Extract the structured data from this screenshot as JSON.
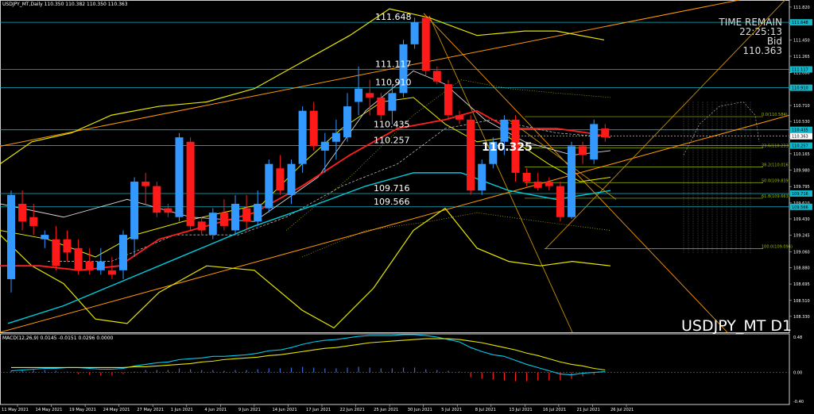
{
  "header": {
    "symbol_info": "USDJPY_MT,Daily  110.350 110.382 110.350 110.363",
    "macd_info": "MACD(12,26,9) 0.0145 -0.0151 0.0296 0.0000",
    "watermark": "USDJPY_MT D1",
    "time_remain_label": "TIME REMAIN",
    "time_remain_value": "22:25:13",
    "bid_label": "Bid",
    "bid_value": "110.363",
    "current_label": "110.325"
  },
  "colors": {
    "background": "#000000",
    "bull": "#3399ff",
    "bear": "#ff1a1a",
    "ma_fast": "#ff2020",
    "ma_slow": "#00ccdd",
    "bollinger": "#e6e600",
    "channel": "#ff9900",
    "macd_line": "#00ccee",
    "signal_line": "#e6e600"
  },
  "level_labels": [
    {
      "text": "111.648",
      "price": 111.648
    },
    {
      "text": "111.117",
      "price": 111.117
    },
    {
      "text": "110.910",
      "price": 110.91
    },
    {
      "text": "110.435",
      "price": 110.435
    },
    {
      "text": "110.257",
      "price": 110.257
    },
    {
      "text": "109.716",
      "price": 109.716
    },
    {
      "text": "109.566",
      "price": 109.566
    }
  ],
  "fib_labels": [
    {
      "text": "0.0(110.584)",
      "price": 110.584
    },
    {
      "text": "23.6(110.233)",
      "price": 110.233
    },
    {
      "text": "38.2(110.016)",
      "price": 110.016
    },
    {
      "text": "50.0(109.839)",
      "price": 109.839
    },
    {
      "text": "61.8(109.663)",
      "price": 109.663
    },
    {
      "text": "100.0(109.094)",
      "price": 109.094
    }
  ],
  "price_axis_ticks": [
    "111.820",
    "111.635",
    "111.450",
    "111.265",
    "111.080",
    "110.895",
    "110.710",
    "110.530",
    "110.345",
    "110.165",
    "109.980",
    "109.795",
    "109.610",
    "109.430",
    "109.245",
    "109.060",
    "108.880",
    "108.695",
    "108.510",
    "108.330"
  ],
  "price_axis_badges": [
    {
      "text": "111.648",
      "price": 111.648
    },
    {
      "text": "111.117",
      "price": 111.117
    },
    {
      "text": "110.910",
      "price": 110.91
    },
    {
      "text": "110.435",
      "price": 110.435
    },
    {
      "text": "110.363",
      "price": 110.363
    },
    {
      "text": "110.257",
      "price": 110.257
    },
    {
      "text": "109.716",
      "price": 109.716
    },
    {
      "text": "109.566",
      "price": 109.566
    }
  ],
  "macd_axis_ticks": [
    "0.48",
    "0.00",
    "-0.40"
  ],
  "date_axis_labels": [
    "11 May 2021",
    "14 May 2021",
    "19 May 2021",
    "24 May 2021",
    "27 May 2021",
    "1 Jun 2021",
    "4 Jun 2021",
    "9 Jun 2021",
    "14 Jun 2021",
    "17 Jun 2021",
    "22 Jun 2021",
    "25 Jun 2021",
    "30 Jun 2021",
    "5 Jul 2021",
    "8 Jul 2021",
    "13 Jul 2021",
    "16 Jul 2021",
    "21 Jul 2021",
    "26 Jul 2021"
  ],
  "chart_data": {
    "type": "candlestick",
    "symbol": "USDJPY_MT",
    "timeframe": "D1",
    "ylim": [
      108.15,
      111.9
    ],
    "macd_ylim": [
      -0.4,
      0.48
    ],
    "candles": [
      {
        "o": 108.75,
        "h": 109.75,
        "l": 108.6,
        "c": 109.7
      },
      {
        "o": 109.6,
        "h": 109.75,
        "l": 109.3,
        "c": 109.4
      },
      {
        "o": 109.45,
        "h": 109.6,
        "l": 109.25,
        "c": 109.35
      },
      {
        "o": 109.2,
        "h": 109.3,
        "l": 109.1,
        "c": 109.25
      },
      {
        "o": 109.2,
        "h": 109.35,
        "l": 108.85,
        "c": 108.9
      },
      {
        "o": 109.2,
        "h": 109.3,
        "l": 108.95,
        "c": 109.05
      },
      {
        "o": 109.1,
        "h": 109.2,
        "l": 108.8,
        "c": 108.85
      },
      {
        "o": 108.95,
        "h": 109.1,
        "l": 108.8,
        "c": 108.85
      },
      {
        "o": 108.85,
        "h": 109.1,
        "l": 108.8,
        "c": 108.95
      },
      {
        "o": 108.85,
        "h": 109.0,
        "l": 108.75,
        "c": 108.8
      },
      {
        "o": 108.85,
        "h": 109.3,
        "l": 108.75,
        "c": 109.25
      },
      {
        "o": 109.2,
        "h": 109.9,
        "l": 109.0,
        "c": 109.85
      },
      {
        "o": 109.85,
        "h": 109.95,
        "l": 109.6,
        "c": 109.8
      },
      {
        "o": 109.8,
        "h": 109.85,
        "l": 109.45,
        "c": 109.5
      },
      {
        "o": 109.55,
        "h": 109.6,
        "l": 109.45,
        "c": 109.5
      },
      {
        "o": 109.45,
        "h": 110.4,
        "l": 109.4,
        "c": 110.35
      },
      {
        "o": 110.3,
        "h": 110.35,
        "l": 109.3,
        "c": 109.35
      },
      {
        "o": 109.4,
        "h": 109.45,
        "l": 109.25,
        "c": 109.3
      },
      {
        "o": 109.25,
        "h": 109.55,
        "l": 109.2,
        "c": 109.5
      },
      {
        "o": 109.5,
        "h": 109.65,
        "l": 109.3,
        "c": 109.35
      },
      {
        "o": 109.3,
        "h": 109.7,
        "l": 109.25,
        "c": 109.6
      },
      {
        "o": 109.55,
        "h": 109.7,
        "l": 109.3,
        "c": 109.4
      },
      {
        "o": 109.4,
        "h": 109.75,
        "l": 109.35,
        "c": 109.6
      },
      {
        "o": 109.55,
        "h": 110.1,
        "l": 109.5,
        "c": 110.05
      },
      {
        "o": 110.0,
        "h": 110.15,
        "l": 109.7,
        "c": 109.75
      },
      {
        "o": 109.7,
        "h": 110.1,
        "l": 109.6,
        "c": 110.05
      },
      {
        "o": 110.05,
        "h": 110.7,
        "l": 109.95,
        "c": 110.65
      },
      {
        "o": 110.65,
        "h": 110.75,
        "l": 110.2,
        "c": 110.25
      },
      {
        "o": 110.2,
        "h": 110.4,
        "l": 109.95,
        "c": 110.3
      },
      {
        "o": 110.3,
        "h": 110.55,
        "l": 110.1,
        "c": 110.4
      },
      {
        "o": 110.35,
        "h": 110.85,
        "l": 110.3,
        "c": 110.7
      },
      {
        "o": 110.75,
        "h": 111.15,
        "l": 110.6,
        "c": 110.9
      },
      {
        "o": 110.85,
        "h": 111.0,
        "l": 110.6,
        "c": 110.8
      },
      {
        "o": 110.8,
        "h": 110.85,
        "l": 110.55,
        "c": 110.6
      },
      {
        "o": 110.65,
        "h": 110.95,
        "l": 110.5,
        "c": 110.85
      },
      {
        "o": 110.85,
        "h": 111.45,
        "l": 110.8,
        "c": 111.4
      },
      {
        "o": 111.4,
        "h": 111.7,
        "l": 111.35,
        "c": 111.65
      },
      {
        "o": 111.7,
        "h": 111.72,
        "l": 111.05,
        "c": 111.1
      },
      {
        "o": 111.1,
        "h": 111.15,
        "l": 110.95,
        "c": 110.98
      },
      {
        "o": 110.95,
        "h": 111.0,
        "l": 110.55,
        "c": 110.6
      },
      {
        "o": 110.6,
        "h": 110.65,
        "l": 110.5,
        "c": 110.55
      },
      {
        "o": 110.55,
        "h": 110.6,
        "l": 109.7,
        "c": 109.75
      },
      {
        "o": 109.75,
        "h": 110.1,
        "l": 109.7,
        "c": 110.05
      },
      {
        "o": 110.05,
        "h": 110.35,
        "l": 110.0,
        "c": 110.3
      },
      {
        "o": 110.3,
        "h": 110.6,
        "l": 110.15,
        "c": 110.55
      },
      {
        "o": 110.55,
        "h": 110.6,
        "l": 109.85,
        "c": 109.95
      },
      {
        "o": 109.95,
        "h": 110.0,
        "l": 109.8,
        "c": 109.85
      },
      {
        "o": 109.85,
        "h": 109.95,
        "l": 109.75,
        "c": 109.78
      },
      {
        "o": 109.85,
        "h": 109.9,
        "l": 109.75,
        "c": 109.8
      },
      {
        "o": 109.8,
        "h": 109.85,
        "l": 109.4,
        "c": 109.45
      },
      {
        "o": 109.45,
        "h": 110.3,
        "l": 109.43,
        "c": 110.25
      },
      {
        "o": 110.25,
        "h": 110.3,
        "l": 110.05,
        "c": 110.15
      },
      {
        "o": 110.1,
        "h": 110.55,
        "l": 110.05,
        "c": 110.5
      },
      {
        "o": 110.45,
        "h": 110.5,
        "l": 110.3,
        "c": 110.35
      }
    ],
    "macd_histogram": [
      0.02,
      0.03,
      0.03,
      0.03,
      0.02,
      0.01,
      -0.02,
      -0.03,
      -0.04,
      -0.04,
      -0.02,
      0.01,
      0.03,
      0.03,
      0.03,
      0.05,
      0.04,
      0.03,
      0.03,
      0.02,
      0.03,
      0.03,
      0.04,
      0.05,
      0.05,
      0.06,
      0.07,
      0.06,
      0.05,
      0.05,
      0.06,
      0.07,
      0.06,
      0.05,
      0.05,
      0.06,
      0.06,
      0.04,
      0.03,
      0.02,
      0.01,
      -0.06,
      -0.08,
      -0.09,
      -0.1,
      -0.11,
      -0.11,
      -0.1,
      -0.1,
      -0.1,
      -0.08,
      -0.05,
      -0.03,
      0.0
    ],
    "macd_line": [
      0.02,
      0.03,
      0.04,
      0.05,
      0.05,
      0.06,
      0.06,
      0.05,
      0.04,
      0.04,
      0.05,
      0.08,
      0.1,
      0.12,
      0.13,
      0.16,
      0.17,
      0.18,
      0.2,
      0.2,
      0.21,
      0.22,
      0.24,
      0.27,
      0.28,
      0.31,
      0.35,
      0.38,
      0.4,
      0.41,
      0.43,
      0.45,
      0.46,
      0.46,
      0.46,
      0.47,
      0.47,
      0.46,
      0.44,
      0.41,
      0.38,
      0.31,
      0.26,
      0.22,
      0.2,
      0.15,
      0.1,
      0.06,
      0.02,
      -0.02,
      -0.03,
      -0.01,
      0.0,
      0.01
    ],
    "signal_line": [
      0.06,
      0.06,
      0.06,
      0.06,
      0.06,
      0.06,
      0.06,
      0.06,
      0.06,
      0.06,
      0.06,
      0.07,
      0.07,
      0.08,
      0.09,
      0.1,
      0.11,
      0.13,
      0.14,
      0.16,
      0.17,
      0.18,
      0.19,
      0.21,
      0.22,
      0.24,
      0.26,
      0.28,
      0.3,
      0.31,
      0.33,
      0.35,
      0.37,
      0.38,
      0.39,
      0.4,
      0.41,
      0.42,
      0.42,
      0.42,
      0.41,
      0.39,
      0.37,
      0.34,
      0.31,
      0.28,
      0.24,
      0.21,
      0.17,
      0.13,
      0.1,
      0.08,
      0.05,
      0.03
    ]
  }
}
